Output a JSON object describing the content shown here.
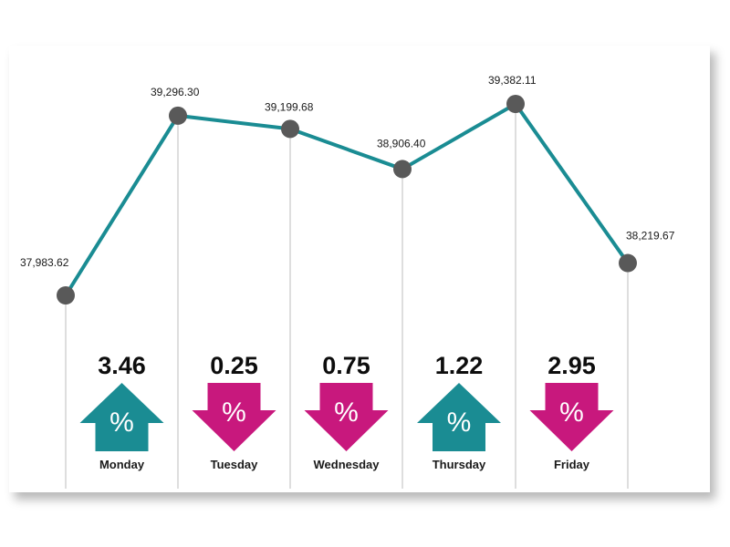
{
  "colors": {
    "line": "#1a8c93",
    "marker": "#595959",
    "up": "#1a8c93",
    "down": "#c8187d",
    "guide": "#bdbdbd"
  },
  "chart_data": {
    "type": "line",
    "title": "",
    "xlabel": "",
    "ylabel": "",
    "points": [
      {
        "label": "37,983.62",
        "value": 37983.62
      },
      {
        "label": "39,296.30",
        "value": 39296.3
      },
      {
        "label": "39,199.68",
        "value": 39199.68
      },
      {
        "label": "38,906.40",
        "value": 38906.4
      },
      {
        "label": "39,382.11",
        "value": 39382.11
      },
      {
        "label": "38,219.67",
        "value": 38219.67
      }
    ],
    "days": [
      {
        "name": "Monday",
        "change": "3.46",
        "direction": "up",
        "symbol": "%"
      },
      {
        "name": "Tuesday",
        "change": "0.25",
        "direction": "down",
        "symbol": "%"
      },
      {
        "name": "Wednesday",
        "change": "0.75",
        "direction": "down",
        "symbol": "%"
      },
      {
        "name": "Thursday",
        "change": "1.22",
        "direction": "up",
        "symbol": "%"
      },
      {
        "name": "Friday",
        "change": "2.95",
        "direction": "down",
        "symbol": "%"
      }
    ],
    "ylim": [
      37800,
      39500
    ],
    "grid": false,
    "legend": "none"
  }
}
